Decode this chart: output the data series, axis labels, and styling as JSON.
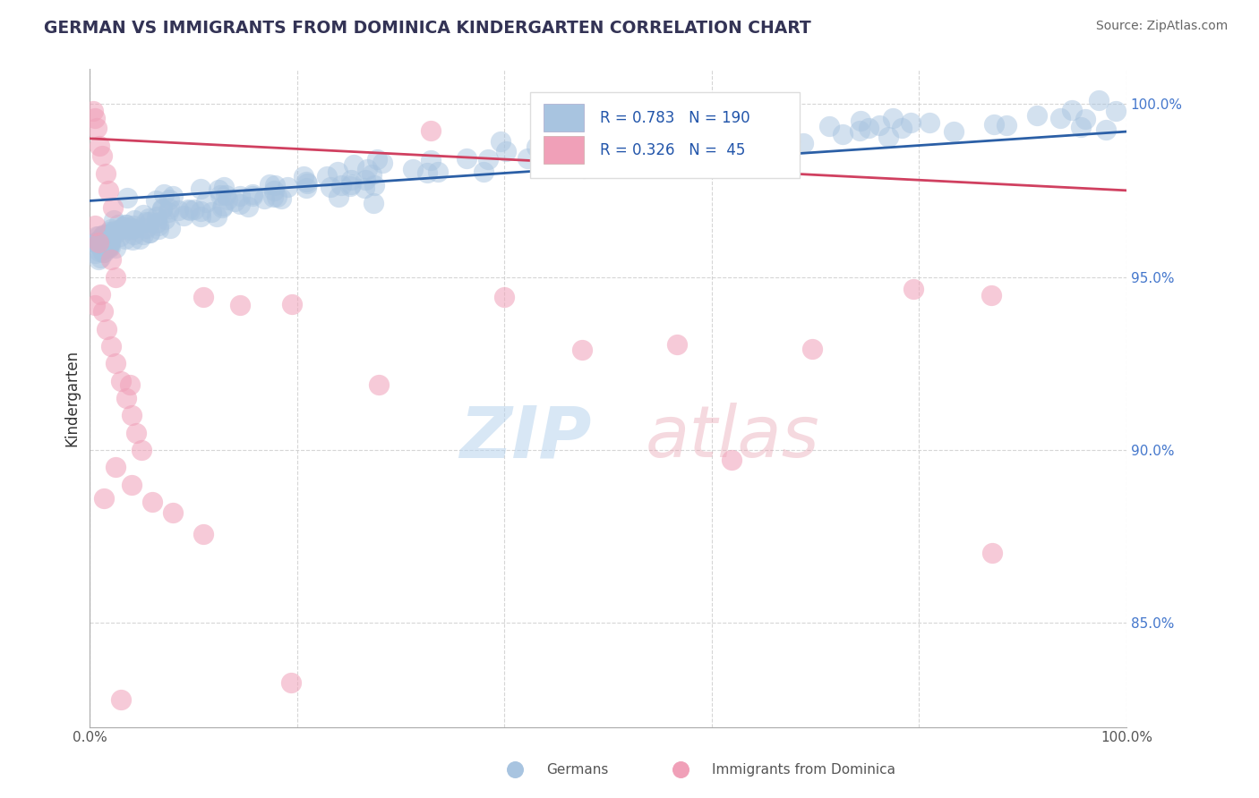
{
  "title": "GERMAN VS IMMIGRANTS FROM DOMINICA KINDERGARTEN CORRELATION CHART",
  "source": "Source: ZipAtlas.com",
  "ylabel": "Kindergarten",
  "ytick_labels": [
    "85.0%",
    "90.0%",
    "95.0%",
    "100.0%"
  ],
  "ytick_values": [
    0.85,
    0.9,
    0.95,
    1.0
  ],
  "xlim": [
    0.0,
    1.0
  ],
  "ylim": [
    0.82,
    1.01
  ],
  "legend_blue_R": "0.783",
  "legend_blue_N": "190",
  "legend_pink_R": "0.326",
  "legend_pink_N": " 45",
  "legend_label_blue": "Germans",
  "legend_label_pink": "Immigrants from Dominica",
  "blue_color": "#a8c4e0",
  "blue_line_color": "#2b5fa6",
  "pink_color": "#f0a0b8",
  "pink_line_color": "#d04060",
  "background_color": "#ffffff",
  "grid_color": "#cccccc",
  "blue_trend_x": [
    0.0,
    1.0
  ],
  "blue_trend_y": [
    0.972,
    0.992
  ],
  "pink_trend_x": [
    0.0,
    1.0
  ],
  "pink_trend_y": [
    0.99,
    0.975
  ]
}
